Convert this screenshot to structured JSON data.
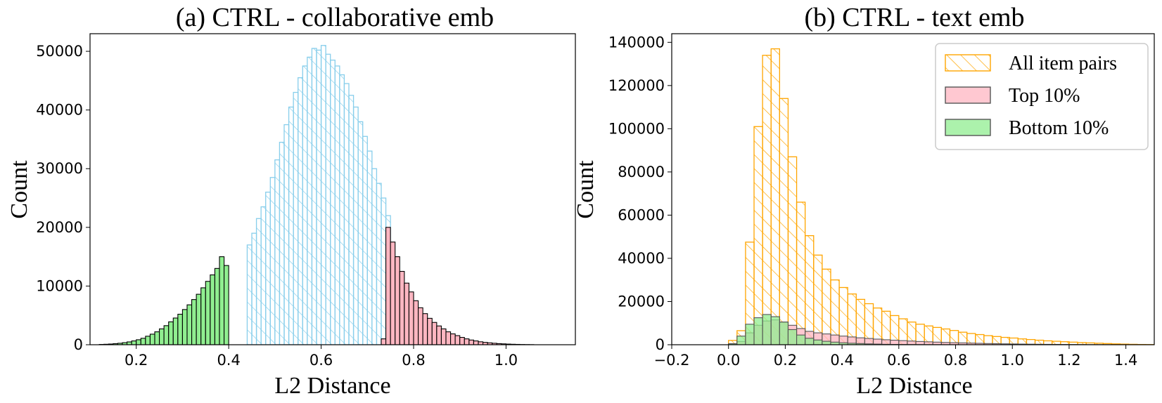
{
  "chart_data": [
    {
      "type": "bar",
      "title": "(a) CTRL - collaborative emb",
      "xlabel": "L2 Distance",
      "ylabel": "Count",
      "xlim": [
        0.1,
        1.15
      ],
      "ylim": [
        0,
        53000
      ],
      "xticks": [
        "0.2",
        "0.4",
        "0.6",
        "0.8",
        "1.0"
      ],
      "xtick_values": [
        0.2,
        0.4,
        0.6,
        0.8,
        1.0
      ],
      "yticks": [
        "0",
        "10000",
        "20000",
        "30000",
        "40000",
        "50000"
      ],
      "ytick_values": [
        0,
        10000,
        20000,
        30000,
        40000,
        50000
      ],
      "bin_width": 0.01,
      "series": [
        {
          "name": "Bottom 10%",
          "style": "filled",
          "color": "#90ee90",
          "edge": "#000000",
          "start": 0.12,
          "values": [
            50,
            80,
            120,
            180,
            250,
            350,
            480,
            650,
            850,
            1100,
            1450,
            1800,
            2200,
            2700,
            3250,
            3900,
            4550,
            5200,
            6000,
            6800,
            7700,
            8600,
            9700,
            10800,
            11900,
            13000,
            15000,
            13500
          ]
        },
        {
          "name": "All item pairs",
          "style": "hatched",
          "color": "#87ceeb",
          "edge": "#87ceeb",
          "start": 0.44,
          "values": [
            17000,
            19000,
            21500,
            23500,
            26000,
            28500,
            31500,
            34500,
            37500,
            40500,
            43000,
            45500,
            47500,
            49000,
            50500,
            50200,
            51000,
            49500,
            48500,
            47500,
            46000,
            44500,
            42500,
            40500,
            38000,
            35500,
            33000,
            30000,
            27500,
            25000,
            22000
          ]
        },
        {
          "name": "Top 10%",
          "style": "filled",
          "color": "#ffb6c1",
          "edge": "#000000",
          "start": 0.73,
          "values": [
            1000,
            20000,
            17500,
            15000,
            12500,
            10500,
            9000,
            7500,
            6300,
            5300,
            4500,
            3800,
            3200,
            2700,
            2200,
            1850,
            1550,
            1250,
            1000,
            800,
            650,
            500,
            400,
            320,
            250,
            190,
            150,
            110,
            80,
            60,
            40,
            25,
            15
          ]
        }
      ]
    },
    {
      "type": "bar",
      "title": "(b) CTRL - text emb",
      "xlabel": "L2 Distance",
      "ylabel": "Count",
      "xlim": [
        -0.2,
        1.5
      ],
      "ylim": [
        0,
        144000
      ],
      "xticks": [
        "−0.2",
        "0.0",
        "0.2",
        "0.4",
        "0.6",
        "0.8",
        "1.0",
        "1.2",
        "1.4"
      ],
      "xtick_values": [
        -0.2,
        0.0,
        0.2,
        0.4,
        0.6,
        0.8,
        1.0,
        1.2,
        1.4
      ],
      "yticks": [
        "0",
        "20000",
        "40000",
        "60000",
        "80000",
        "100000",
        "120000",
        "140000"
      ],
      "ytick_values": [
        0,
        20000,
        40000,
        60000,
        80000,
        100000,
        120000,
        140000
      ],
      "bin_width": 0.03,
      "legend": {
        "position": "upper right",
        "entries": [
          "All item pairs",
          "Top 10%",
          "Bottom 10%"
        ]
      },
      "series": [
        {
          "name": "All item pairs",
          "style": "hatched",
          "color": "#ffa500",
          "edge": "#ffa500",
          "start": 0.0,
          "values": [
            2000,
            6500,
            47500,
            101000,
            134000,
            137000,
            114000,
            87000,
            66000,
            50500,
            41500,
            35000,
            30000,
            26500,
            23500,
            21000,
            19000,
            17000,
            15500,
            13500,
            12000,
            10500,
            9500,
            8700,
            8000,
            7300,
            6600,
            5800,
            5200,
            4700,
            4200,
            3800,
            3400,
            3100,
            2700,
            2400,
            2100,
            1800,
            1600,
            1400,
            1200,
            1000,
            850,
            700,
            550,
            400,
            300,
            200,
            120,
            80
          ]
        },
        {
          "name": "Top 10%",
          "style": "filled",
          "color": "#ffb6c1",
          "edge": "#555555",
          "start": 0.0,
          "values": [
            300,
            1500,
            5500,
            9000,
            11000,
            11500,
            10500,
            9000,
            7500,
            6200,
            5500,
            5000,
            4500,
            4000,
            3600,
            3200,
            2900,
            2600,
            2300,
            2100,
            1900,
            1700,
            1500,
            1350,
            1200,
            1050,
            950,
            850,
            750,
            650,
            550,
            480,
            420,
            360,
            310,
            260,
            220,
            180,
            150,
            120,
            100,
            80,
            60,
            45,
            35,
            25,
            15,
            10,
            5,
            3
          ]
        },
        {
          "name": "Bottom 10%",
          "style": "filled",
          "color": "#90ee90",
          "edge": "#555555",
          "start": 0.0,
          "values": [
            500,
            4000,
            9500,
            12500,
            14000,
            13000,
            10500,
            7000,
            4500,
            3000,
            2200,
            1600,
            1200,
            900,
            700,
            550,
            400,
            300,
            200,
            150,
            100,
            80,
            60,
            40,
            30,
            20,
            10,
            5,
            0,
            0,
            0,
            0,
            0,
            0,
            0,
            0,
            0,
            0,
            0,
            0,
            0,
            0,
            0,
            0,
            0,
            0,
            0,
            0,
            0,
            0
          ]
        }
      ]
    }
  ]
}
